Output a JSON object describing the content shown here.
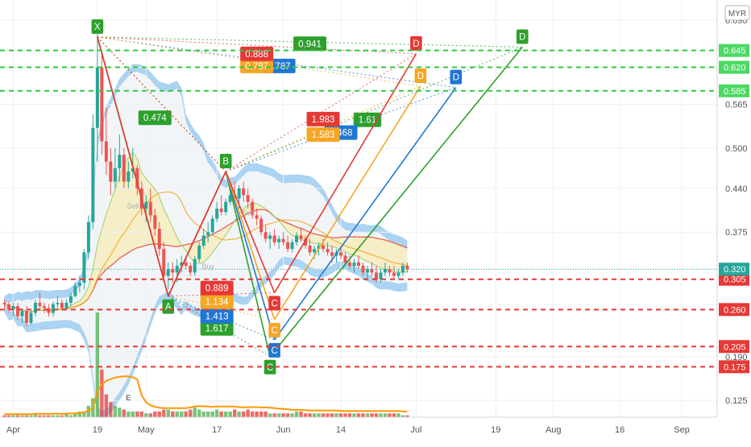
{
  "currency": "MYR",
  "chart_data": {
    "type": "candlestick",
    "title": "",
    "xlabel": "",
    "ylabel": "",
    "ylim": [
      0.1,
      0.72
    ],
    "y_ticks": [
      0.125,
      0.19,
      0.32,
      0.375,
      0.44,
      0.5,
      0.565,
      0.62,
      0.645,
      0.69
    ],
    "x_ticks": [
      {
        "label": "Apr",
        "x": 2
      },
      {
        "label": "19",
        "x": 21
      },
      {
        "label": "May",
        "x": 32
      },
      {
        "label": "17",
        "x": 48
      },
      {
        "label": "Jun",
        "x": 63
      },
      {
        "label": "14",
        "x": 76
      },
      {
        "label": "Jul",
        "x": 93
      },
      {
        "label": "19",
        "x": 111
      },
      {
        "label": "Aug",
        "x": 124
      },
      {
        "label": "16",
        "x": 139
      },
      {
        "label": "Sep",
        "x": 153
      }
    ],
    "last_price": {
      "label": "0.320",
      "value": 0.32
    },
    "price_lines": [
      {
        "value": 0.645,
        "label": "0.645",
        "color": "#2ecc40"
      },
      {
        "value": 0.62,
        "label": "0.620",
        "color": "#2ecc40"
      },
      {
        "value": 0.585,
        "label": "0.585",
        "color": "#2ecc40"
      },
      {
        "value": 0.305,
        "label": "0.305",
        "color": "#e53935"
      },
      {
        "value": 0.26,
        "label": "0.260",
        "color": "#e53935"
      },
      {
        "value": 0.205,
        "label": "0.205",
        "color": "#e53935"
      },
      {
        "value": 0.175,
        "label": "0.175",
        "color": "#e53935"
      }
    ],
    "candles": [
      [
        0,
        0.27,
        0.275,
        0.262,
        0.268
      ],
      [
        1,
        0.268,
        0.272,
        0.255,
        0.26
      ],
      [
        2,
        0.26,
        0.27,
        0.25,
        0.265
      ],
      [
        3,
        0.265,
        0.27,
        0.245,
        0.25
      ],
      [
        4,
        0.25,
        0.262,
        0.24,
        0.258
      ],
      [
        5,
        0.258,
        0.265,
        0.235,
        0.24
      ],
      [
        6,
        0.24,
        0.26,
        0.238,
        0.255
      ],
      [
        7,
        0.255,
        0.275,
        0.25,
        0.27
      ],
      [
        8,
        0.27,
        0.285,
        0.26,
        0.265
      ],
      [
        9,
        0.265,
        0.27,
        0.255,
        0.262
      ],
      [
        10,
        0.262,
        0.268,
        0.25,
        0.255
      ],
      [
        11,
        0.255,
        0.272,
        0.25,
        0.268
      ],
      [
        12,
        0.268,
        0.28,
        0.262,
        0.27
      ],
      [
        13,
        0.27,
        0.275,
        0.258,
        0.262
      ],
      [
        14,
        0.262,
        0.275,
        0.26,
        0.27
      ],
      [
        15,
        0.27,
        0.285,
        0.265,
        0.28
      ],
      [
        16,
        0.28,
        0.3,
        0.278,
        0.295
      ],
      [
        17,
        0.295,
        0.31,
        0.285,
        0.3
      ],
      [
        18,
        0.3,
        0.35,
        0.29,
        0.345
      ],
      [
        19,
        0.345,
        0.4,
        0.335,
        0.39
      ],
      [
        20,
        0.39,
        0.55,
        0.38,
        0.53
      ],
      [
        21,
        0.53,
        0.67,
        0.48,
        0.62
      ],
      [
        22,
        0.62,
        0.64,
        0.49,
        0.51
      ],
      [
        23,
        0.51,
        0.56,
        0.46,
        0.48
      ],
      [
        24,
        0.48,
        0.5,
        0.43,
        0.45
      ],
      [
        25,
        0.45,
        0.5,
        0.44,
        0.47
      ],
      [
        26,
        0.47,
        0.52,
        0.45,
        0.49
      ],
      [
        27,
        0.49,
        0.5,
        0.44,
        0.45
      ],
      [
        28,
        0.45,
        0.48,
        0.44,
        0.465
      ],
      [
        29,
        0.465,
        0.5,
        0.455,
        0.47
      ],
      [
        30,
        0.47,
        0.475,
        0.43,
        0.44
      ],
      [
        31,
        0.44,
        0.45,
        0.4,
        0.41
      ],
      [
        32,
        0.41,
        0.43,
        0.39,
        0.42
      ],
      [
        33,
        0.42,
        0.44,
        0.39,
        0.4
      ],
      [
        34,
        0.4,
        0.41,
        0.37,
        0.38
      ],
      [
        35,
        0.38,
        0.39,
        0.34,
        0.35
      ],
      [
        36,
        0.35,
        0.36,
        0.3,
        0.31
      ],
      [
        37,
        0.31,
        0.33,
        0.29,
        0.32
      ],
      [
        38,
        0.32,
        0.33,
        0.3,
        0.315
      ],
      [
        39,
        0.315,
        0.335,
        0.3,
        0.325
      ],
      [
        40,
        0.325,
        0.34,
        0.315,
        0.33
      ],
      [
        41,
        0.33,
        0.34,
        0.32,
        0.325
      ],
      [
        42,
        0.325,
        0.33,
        0.31,
        0.315
      ],
      [
        43,
        0.315,
        0.34,
        0.31,
        0.335
      ],
      [
        44,
        0.335,
        0.36,
        0.33,
        0.355
      ],
      [
        45,
        0.355,
        0.38,
        0.35,
        0.37
      ],
      [
        46,
        0.37,
        0.39,
        0.36,
        0.375
      ],
      [
        47,
        0.375,
        0.4,
        0.37,
        0.395
      ],
      [
        48,
        0.395,
        0.42,
        0.39,
        0.41
      ],
      [
        49,
        0.41,
        0.43,
        0.4,
        0.405
      ],
      [
        50,
        0.405,
        0.425,
        0.4,
        0.42
      ],
      [
        51,
        0.42,
        0.44,
        0.415,
        0.43
      ],
      [
        52,
        0.43,
        0.45,
        0.42,
        0.425
      ],
      [
        53,
        0.425,
        0.445,
        0.41,
        0.44
      ],
      [
        54,
        0.44,
        0.45,
        0.42,
        0.43
      ],
      [
        55,
        0.43,
        0.44,
        0.41,
        0.42
      ],
      [
        56,
        0.42,
        0.425,
        0.395,
        0.4
      ],
      [
        57,
        0.4,
        0.41,
        0.385,
        0.395
      ],
      [
        58,
        0.395,
        0.4,
        0.37,
        0.375
      ],
      [
        59,
        0.375,
        0.385,
        0.36,
        0.365
      ],
      [
        60,
        0.365,
        0.375,
        0.35,
        0.37
      ],
      [
        61,
        0.37,
        0.38,
        0.355,
        0.36
      ],
      [
        62,
        0.36,
        0.37,
        0.35,
        0.365
      ],
      [
        63,
        0.365,
        0.375,
        0.355,
        0.36
      ],
      [
        64,
        0.36,
        0.37,
        0.345,
        0.35
      ],
      [
        65,
        0.35,
        0.365,
        0.345,
        0.36
      ],
      [
        66,
        0.36,
        0.375,
        0.355,
        0.37
      ],
      [
        67,
        0.37,
        0.38,
        0.36,
        0.365
      ],
      [
        68,
        0.365,
        0.37,
        0.35,
        0.355
      ],
      [
        69,
        0.355,
        0.365,
        0.34,
        0.345
      ],
      [
        70,
        0.345,
        0.355,
        0.335,
        0.35
      ],
      [
        71,
        0.35,
        0.36,
        0.34,
        0.355
      ],
      [
        72,
        0.355,
        0.365,
        0.345,
        0.35
      ],
      [
        73,
        0.35,
        0.36,
        0.34,
        0.345
      ],
      [
        74,
        0.345,
        0.355,
        0.33,
        0.34
      ],
      [
        75,
        0.34,
        0.35,
        0.33,
        0.345
      ],
      [
        76,
        0.345,
        0.355,
        0.335,
        0.34
      ],
      [
        77,
        0.34,
        0.345,
        0.325,
        0.33
      ],
      [
        78,
        0.33,
        0.34,
        0.32,
        0.325
      ],
      [
        79,
        0.325,
        0.335,
        0.315,
        0.33
      ],
      [
        80,
        0.33,
        0.34,
        0.32,
        0.325
      ],
      [
        81,
        0.325,
        0.33,
        0.31,
        0.315
      ],
      [
        82,
        0.315,
        0.325,
        0.305,
        0.32
      ],
      [
        83,
        0.32,
        0.33,
        0.31,
        0.315
      ],
      [
        84,
        0.315,
        0.325,
        0.3,
        0.305
      ],
      [
        85,
        0.305,
        0.32,
        0.3,
        0.315
      ],
      [
        86,
        0.315,
        0.33,
        0.31,
        0.32
      ],
      [
        87,
        0.32,
        0.325,
        0.31,
        0.315
      ],
      [
        88,
        0.315,
        0.325,
        0.305,
        0.31
      ],
      [
        89,
        0.31,
        0.32,
        0.305,
        0.315
      ],
      [
        90,
        0.315,
        0.33,
        0.31,
        0.325
      ],
      [
        91,
        0.325,
        0.33,
        0.315,
        0.32
      ]
    ],
    "volume": [
      1,
      1,
      1,
      1,
      1,
      1,
      1,
      2,
      1,
      1,
      1,
      1,
      1,
      1,
      2,
      1,
      2,
      3,
      3,
      6,
      10,
      55,
      25,
      12,
      8,
      6,
      5,
      4,
      3,
      3,
      3,
      3,
      2,
      2,
      3,
      3,
      4,
      4,
      3,
      3,
      3,
      3,
      4,
      5,
      4,
      3,
      3,
      3,
      4,
      3,
      3,
      3,
      4,
      3,
      3,
      4,
      3,
      3,
      3,
      3,
      2,
      2,
      2,
      2,
      2,
      2,
      3,
      3,
      2,
      2,
      2,
      2,
      2,
      2,
      2,
      2,
      2,
      2,
      2,
      2,
      2,
      2,
      2,
      2,
      2,
      2,
      2,
      2,
      2,
      2,
      1,
      1
    ],
    "patterns": [
      {
        "name": "green",
        "color": "#2ca02c",
        "points": [
          {
            "label": "X",
            "x": 21,
            "y": 0.665
          },
          {
            "label": "A",
            "x": 37,
            "y": 0.28
          },
          {
            "label": "B",
            "x": 50,
            "y": 0.465
          },
          {
            "label": "C",
            "x": 60,
            "y": 0.19
          },
          {
            "label": "D",
            "x": 117,
            "y": 0.65
          }
        ],
        "ratios": [
          {
            "label": "0.474",
            "x": 34,
            "y": 0.545
          },
          {
            "label": "1.617",
            "x": 48,
            "y": 0.232
          },
          {
            "label": "1.61",
            "x": 82,
            "y": 0.542
          },
          {
            "label": "0.941",
            "x": 69,
            "y": 0.655
          }
        ]
      },
      {
        "name": "blue",
        "color": "#1f77d4",
        "points": [
          {
            "label": "C",
            "x": 61,
            "y": 0.215
          },
          {
            "label": "D",
            "x": 102,
            "y": 0.59
          }
        ],
        "ratios": [
          {
            "label": "1.413",
            "x": 48,
            "y": 0.25
          },
          {
            "label": "1.468",
            "x": 76,
            "y": 0.523
          },
          {
            "label": "0.787",
            "x": 62,
            "y": 0.622
          }
        ]
      },
      {
        "name": "orange",
        "color": "#f5a623",
        "points": [
          {
            "label": "C",
            "x": 61,
            "y": 0.245
          },
          {
            "label": "D",
            "x": 94,
            "y": 0.592
          }
        ],
        "ratios": [
          {
            "label": "1.134",
            "x": 48,
            "y": 0.272
          },
          {
            "label": "1.583",
            "x": 72,
            "y": 0.52
          },
          {
            "label": "0.787",
            "x": 57,
            "y": 0.622
          }
        ]
      },
      {
        "name": "red",
        "color": "#e53935",
        "points": [
          {
            "label": "C",
            "x": 61,
            "y": 0.285
          },
          {
            "label": "D",
            "x": 93,
            "y": 0.64
          }
        ],
        "ratios": [
          {
            "label": "0.889",
            "x": 48,
            "y": 0.292
          },
          {
            "label": "1.983",
            "x": 72,
            "y": 0.543
          },
          {
            "label": "0.888",
            "x": 57,
            "y": 0.64
          }
        ]
      }
    ],
    "annotations": [
      {
        "label": "Sell",
        "x": 29,
        "y": 0.41
      },
      {
        "label": "Sell",
        "x": 55,
        "y": 0.4
      },
      {
        "label": "Buy",
        "x": 46,
        "y": 0.32
      },
      {
        "label": "E",
        "x": 28,
        "y": 0.125
      }
    ]
  }
}
